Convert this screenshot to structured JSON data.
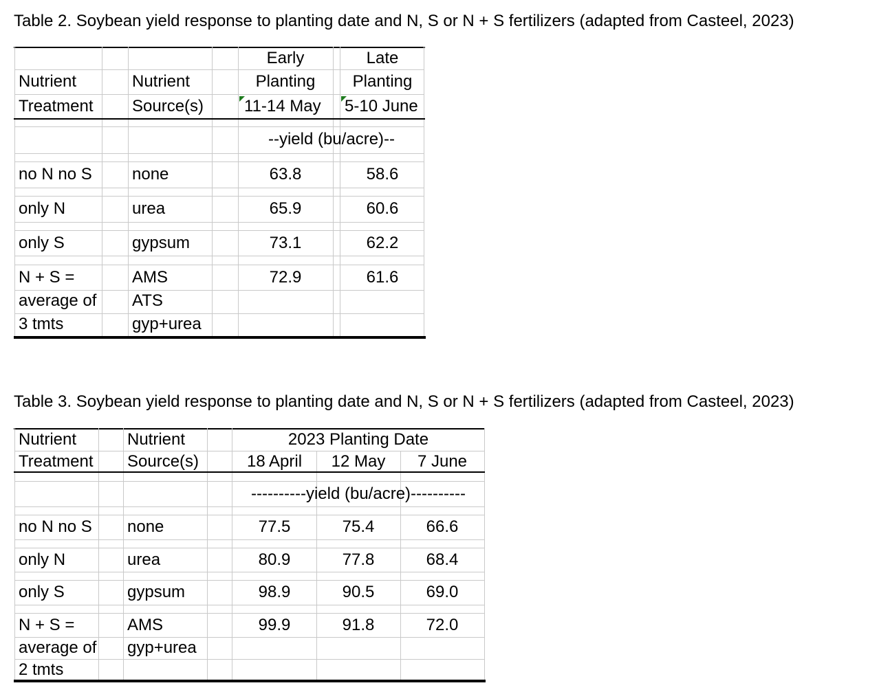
{
  "table2": {
    "caption": "Table 2. Soybean yield response to planting date and N, S or N + S fertilizers (adapted from Casteel, 2023)",
    "headers": {
      "treatment": [
        "Nutrient",
        "Treatment"
      ],
      "source": [
        "Nutrient",
        "Source(s)"
      ],
      "early": [
        "Early",
        "Planting",
        "11-14 May"
      ],
      "late": [
        "Late",
        "Planting",
        "5-10 June"
      ]
    },
    "units": "--yield (bu/acre)--",
    "rows": [
      {
        "treatment": "no N no S",
        "source": "none",
        "early": "63.8",
        "late": "58.6"
      },
      {
        "treatment": "only N",
        "source": "urea",
        "early": "65.9",
        "late": "60.6"
      },
      {
        "treatment": "only S",
        "source": "gypsum",
        "early": "73.1",
        "late": "62.2"
      },
      {
        "treatment": "N + S =",
        "source": "AMS",
        "early": "72.9",
        "late": "61.6"
      }
    ],
    "extra_treatment": [
      "average of",
      "3 tmts"
    ],
    "extra_source": [
      "ATS",
      "gyp+urea"
    ]
  },
  "table3": {
    "caption": "Table 3. Soybean yield response to planting date and N, S or N + S fertilizers (adapted from Casteel, 2023)",
    "headers": {
      "treatment": [
        "Nutrient",
        "Treatment"
      ],
      "source": [
        "Nutrient",
        "Source(s)"
      ],
      "group": "2023 Planting Date",
      "dates": [
        "18 April",
        "12 May",
        "7 June"
      ]
    },
    "units": "----------yield (bu/acre)----------",
    "rows": [
      {
        "treatment": "no N no S",
        "source": "none",
        "values": [
          "77.5",
          "75.4",
          "66.6"
        ]
      },
      {
        "treatment": "only N",
        "source": "urea",
        "values": [
          "80.9",
          "77.8",
          "68.4"
        ]
      },
      {
        "treatment": "only S",
        "source": "gypsum",
        "values": [
          "98.9",
          "90.5",
          "69.0"
        ]
      },
      {
        "treatment": "N + S =",
        "source": "AMS",
        "values": [
          "99.9",
          "91.8",
          "72.0"
        ]
      }
    ],
    "extra_treatment": [
      "average of",
      "2 tmts"
    ],
    "extra_source": [
      "gyp+urea"
    ]
  }
}
